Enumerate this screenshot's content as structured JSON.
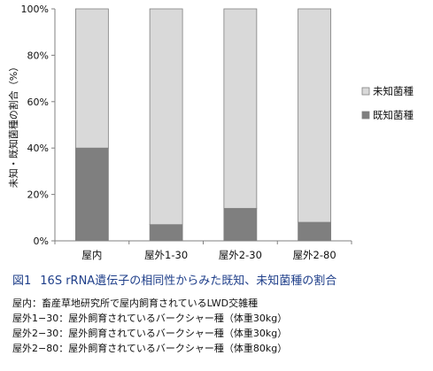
{
  "chart_data": {
    "type": "bar",
    "stacked": true,
    "categories": [
      "屋内",
      "屋外1-30",
      "屋外2-30",
      "屋外2-80"
    ],
    "series": [
      {
        "name": "既知菌種",
        "values": [
          40,
          7,
          14,
          8
        ],
        "color": "#7f7f7f"
      },
      {
        "name": "未知菌種",
        "values": [
          60,
          93,
          86,
          92
        ],
        "color": "#d9d9d9"
      }
    ],
    "ylabel": "未知・既知菌種の割合（%）",
    "ylim": [
      0,
      100
    ],
    "yticks": [
      "0%",
      "20%",
      "40%",
      "60%",
      "80%",
      "100%"
    ],
    "yticks_values": [
      0,
      20,
      40,
      60,
      80,
      100
    ],
    "legend_position": "right",
    "grid": false
  },
  "caption": {
    "label": "図1",
    "text": "16S rRNA遺伝子の相同性からみた既知、未知菌種の割合"
  },
  "notes": [
    "屋内：畜産草地研究所で屋内飼育されているLWD交雑種",
    "屋外1−30：屋外飼育されているバークシャー種（体重30kg）",
    "屋外2−30：屋外飼育されているバークシャー種（体重30kg）",
    "屋外2−80：屋外飼育されているバークシャー種（体重80kg）"
  ],
  "colors": {
    "known": "#7f7f7f",
    "unknown": "#d9d9d9",
    "axis": "#808080",
    "caption": "#1f3f8a"
  }
}
